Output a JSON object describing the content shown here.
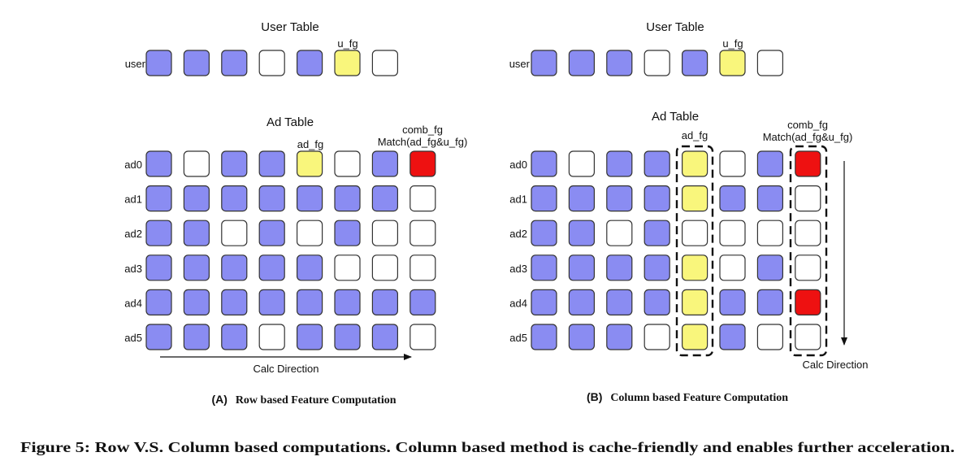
{
  "colors": {
    "filled": "#8a8cf2",
    "empty": "#ffffff",
    "highlight": "#f9f67c",
    "match": "#ee1111",
    "stroke": "#333333"
  },
  "panel_a": {
    "user_table_title": "User Table",
    "user_row_label": "user",
    "u_fg_label": "u_fg",
    "user_cells": [
      "b",
      "b",
      "b",
      "w",
      "b",
      "y",
      "w"
    ],
    "ad_table_title": "Ad Table",
    "ad_fg_label": "ad_fg",
    "comb_fg_label": "comb_fg",
    "match_label": "Match(ad_fg&u_fg)",
    "ad_rows": [
      {
        "label": "ad0",
        "cells": [
          "b",
          "w",
          "b",
          "b",
          "y",
          "w",
          "b",
          "r"
        ]
      },
      {
        "label": "ad1",
        "cells": [
          "b",
          "b",
          "b",
          "b",
          "b",
          "b",
          "b",
          "w"
        ]
      },
      {
        "label": "ad2",
        "cells": [
          "b",
          "b",
          "w",
          "b",
          "w",
          "b",
          "w",
          "w"
        ]
      },
      {
        "label": "ad3",
        "cells": [
          "b",
          "b",
          "b",
          "b",
          "b",
          "w",
          "w",
          "w"
        ]
      },
      {
        "label": "ad4",
        "cells": [
          "b",
          "b",
          "b",
          "b",
          "b",
          "b",
          "b",
          "b"
        ]
      },
      {
        "label": "ad5",
        "cells": [
          "b",
          "b",
          "b",
          "w",
          "b",
          "b",
          "b",
          "w"
        ]
      }
    ],
    "direction_label": "Calc Direction",
    "caption_prefix": "(A)",
    "caption_text": "Row based Feature Computation"
  },
  "panel_b": {
    "user_table_title": "User Table",
    "user_row_label": "user",
    "u_fg_label": "u_fg",
    "user_cells": [
      "b",
      "b",
      "b",
      "w",
      "b",
      "y",
      "w"
    ],
    "ad_table_title": "Ad Table",
    "ad_fg_label": "ad_fg",
    "comb_fg_label": "comb_fg",
    "match_label": "Match(ad_fg&u_fg)",
    "ad_rows": [
      {
        "label": "ad0",
        "cells": [
          "b",
          "w",
          "b",
          "b",
          "y",
          "w",
          "b",
          "r"
        ]
      },
      {
        "label": "ad1",
        "cells": [
          "b",
          "b",
          "b",
          "b",
          "y",
          "b",
          "b",
          "w"
        ]
      },
      {
        "label": "ad2",
        "cells": [
          "b",
          "b",
          "w",
          "b",
          "w",
          "w",
          "w",
          "w"
        ]
      },
      {
        "label": "ad3",
        "cells": [
          "b",
          "b",
          "b",
          "b",
          "y",
          "w",
          "b",
          "w"
        ]
      },
      {
        "label": "ad4",
        "cells": [
          "b",
          "b",
          "b",
          "b",
          "y",
          "b",
          "b",
          "r"
        ]
      },
      {
        "label": "ad5",
        "cells": [
          "b",
          "b",
          "b",
          "w",
          "y",
          "b",
          "w",
          "w"
        ]
      }
    ],
    "direction_label": "Calc Direction",
    "caption_prefix": "(B)",
    "caption_text": "Column based Feature Computation"
  },
  "figure_caption": "Figure 5: Row V.S. Column based computations. Column based method is cache-friendly and enables further acceleration."
}
